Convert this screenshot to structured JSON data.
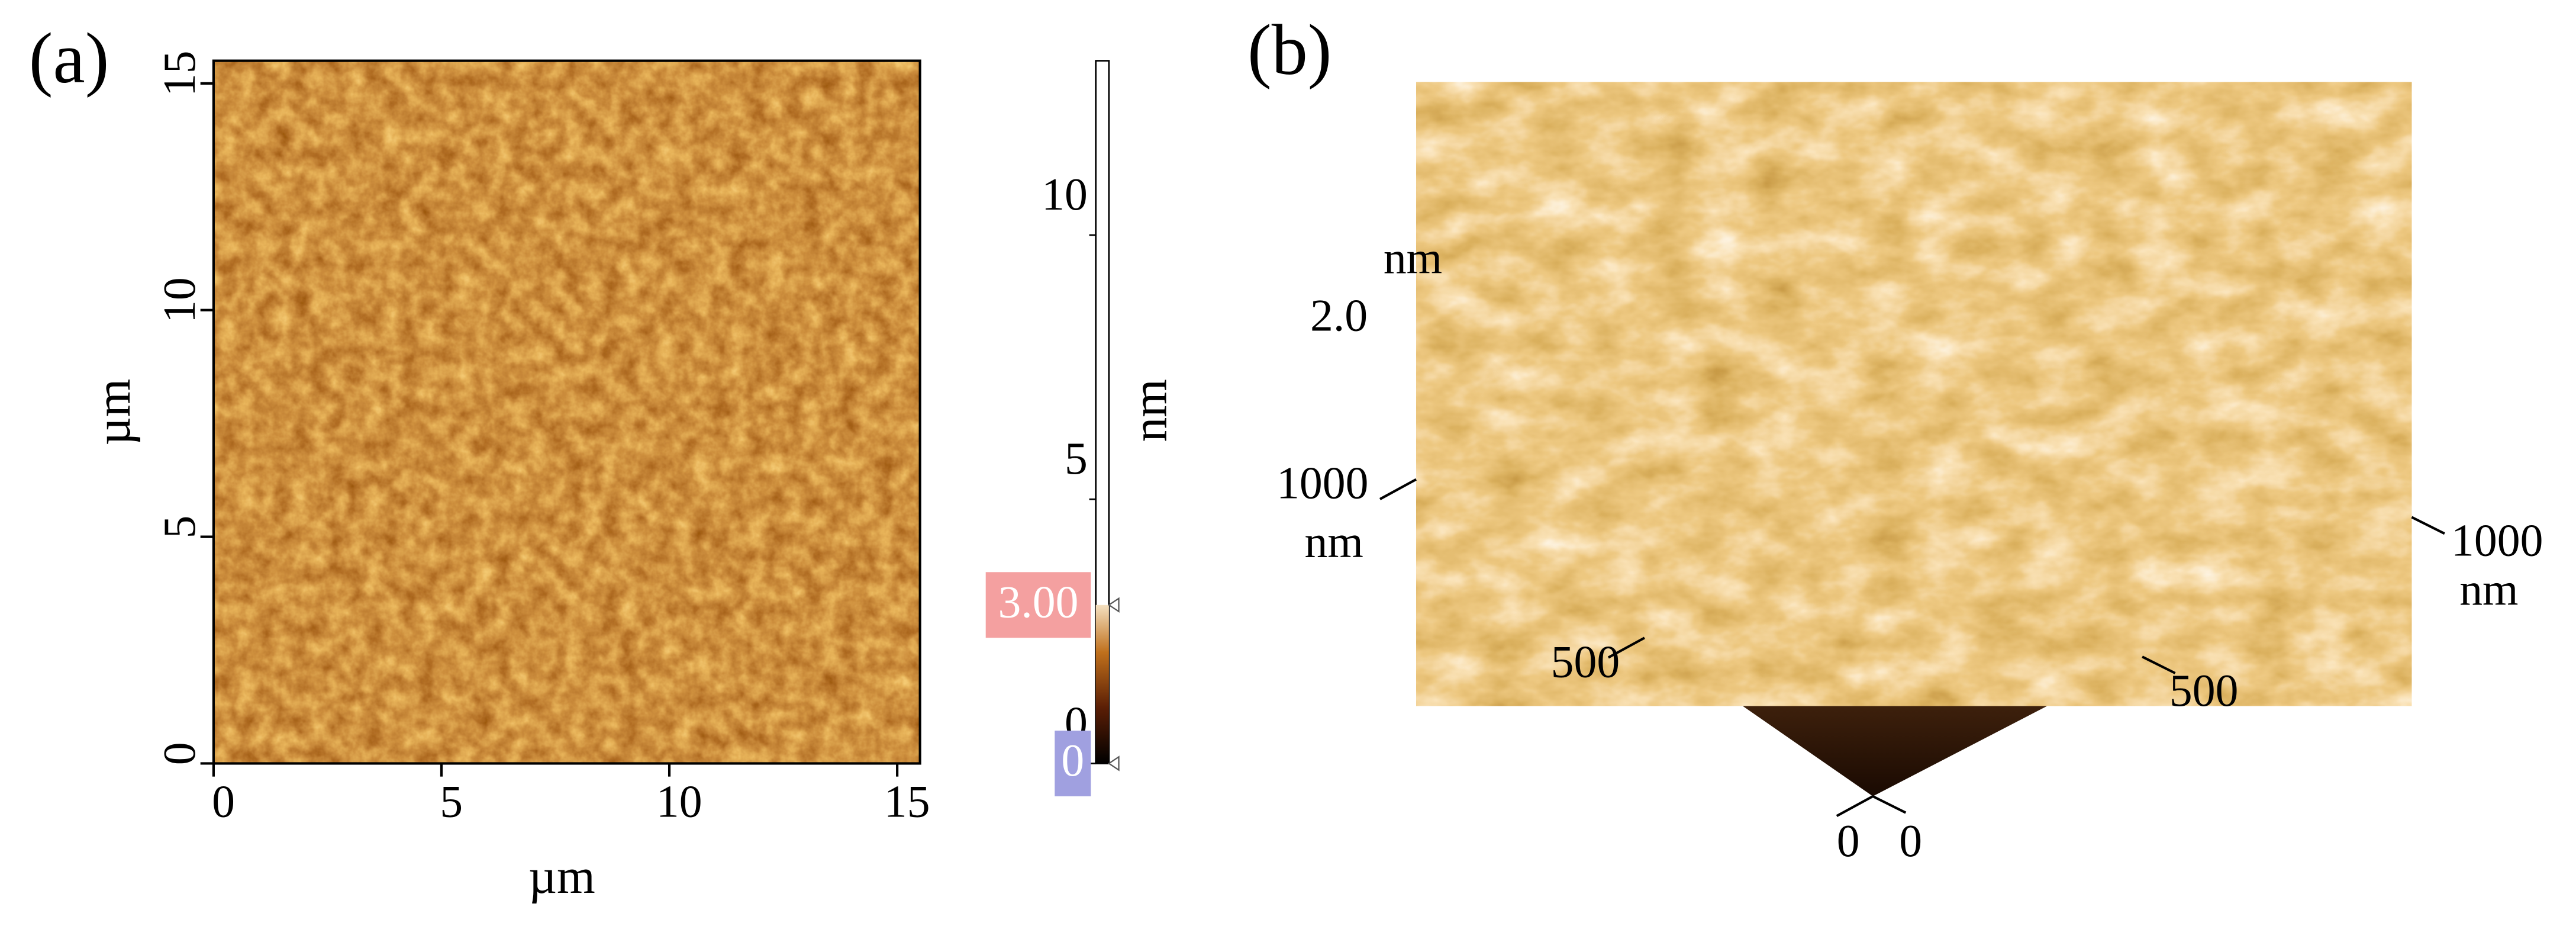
{
  "panel_a": {
    "label": "(a)",
    "x_axis": {
      "label": "µm",
      "ticks": [
        0,
        5,
        10,
        15
      ],
      "lim": [
        0,
        15.5
      ]
    },
    "y_axis": {
      "label": "µm",
      "ticks": [
        0,
        5,
        10,
        15
      ],
      "lim": [
        0,
        15.5
      ]
    },
    "colorbar": {
      "label": "nm",
      "ticks": [
        0,
        5,
        10
      ],
      "lim": [
        0,
        13.3
      ],
      "markers": [
        {
          "value": 3,
          "label": "3.00"
        },
        {
          "value": 0,
          "label": "0"
        }
      ]
    }
  },
  "panel_b": {
    "label": "(b)",
    "z_axis": {
      "label": "nm",
      "ticks": [
        {
          "value": 2,
          "label": "2.0"
        }
      ]
    },
    "left_axis": {
      "label": "nm",
      "ticks": [
        0,
        500,
        1000
      ]
    },
    "right_axis": {
      "label": "nm",
      "ticks": [
        0,
        500,
        1000
      ]
    }
  }
}
